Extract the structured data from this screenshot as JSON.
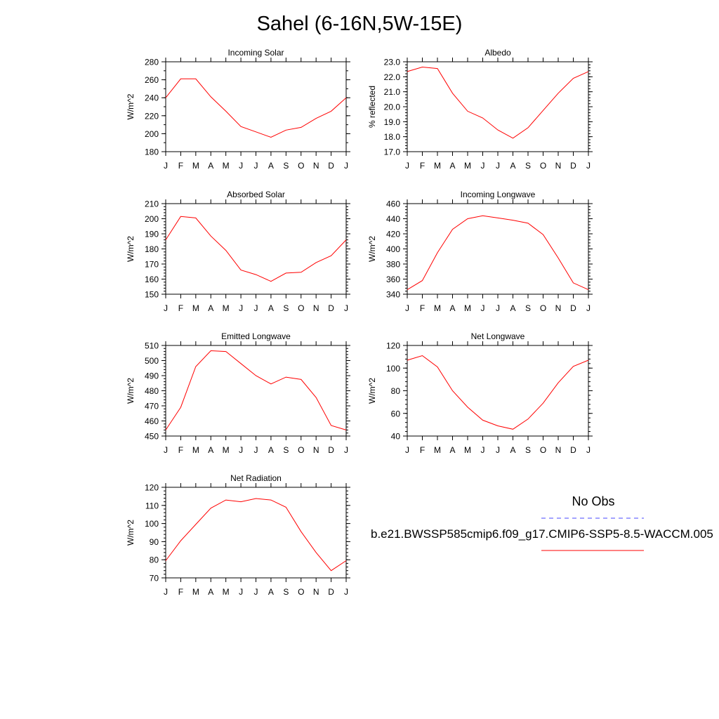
{
  "title": "Sahel (6-16N,5W-15E)",
  "months": [
    "J",
    "F",
    "M",
    "A",
    "M",
    "J",
    "J",
    "A",
    "S",
    "O",
    "N",
    "D",
    "J"
  ],
  "colors": {
    "model_line": "#ff0000",
    "obs_line": "#4a4aff",
    "axis": "#000000"
  },
  "legend": {
    "obs_label": "No Obs",
    "model_label": "b.e21.BWSSP585cmip6.f09_g17.CMIP6-SSP5-8.5-WACCM.005"
  },
  "chart_data": [
    {
      "type": "line",
      "title": "Incoming Solar",
      "ylabel": "W/m^2",
      "ylim": [
        180,
        280
      ],
      "yticks": [
        180,
        200,
        220,
        240,
        260,
        280
      ],
      "ytick_labels": [
        "180",
        "200",
        "220",
        "240",
        "260",
        "280"
      ],
      "y_minor": 10,
      "values": [
        240,
        261,
        261,
        241,
        225,
        208,
        202,
        196,
        204,
        207,
        217,
        225,
        240
      ]
    },
    {
      "type": "line",
      "title": "Albedo",
      "ylabel": "% reflected",
      "ylim": [
        17,
        23
      ],
      "yticks": [
        17,
        18,
        19,
        20,
        21,
        22,
        23
      ],
      "ytick_labels": [
        "17.0",
        "18.0",
        "19.0",
        "20.0",
        "21.0",
        "22.0",
        "23.0"
      ],
      "y_minor": 0.2,
      "values": [
        22.35,
        22.65,
        22.55,
        20.9,
        19.7,
        19.25,
        18.45,
        17.9,
        18.6,
        19.75,
        20.9,
        21.9,
        22.35
      ]
    },
    {
      "type": "line",
      "title": "Absorbed Solar",
      "ylabel": "W/m^2",
      "ylim": [
        150,
        210
      ],
      "yticks": [
        150,
        160,
        170,
        180,
        190,
        200,
        210
      ],
      "ytick_labels": [
        "150",
        "160",
        "170",
        "180",
        "190",
        "200",
        "210"
      ],
      "y_minor": 2,
      "values": [
        186,
        201.5,
        200.5,
        188.5,
        179,
        166,
        163,
        158.5,
        164,
        164.5,
        171,
        175.5,
        186
      ]
    },
    {
      "type": "line",
      "title": "Incoming Longwave",
      "ylabel": "W/m^2",
      "ylim": [
        340,
        460
      ],
      "yticks": [
        340,
        360,
        380,
        400,
        420,
        440,
        460
      ],
      "ytick_labels": [
        "340",
        "360",
        "380",
        "400",
        "420",
        "440",
        "460"
      ],
      "y_minor": 4,
      "values": [
        346,
        358,
        395,
        426,
        440,
        444,
        441,
        438,
        434,
        419,
        388,
        355,
        346
      ]
    },
    {
      "type": "line",
      "title": "Emitted Longwave",
      "ylabel": "W/m^2",
      "ylim": [
        450,
        510
      ],
      "yticks": [
        450,
        460,
        470,
        480,
        490,
        500,
        510
      ],
      "ytick_labels": [
        "450",
        "460",
        "470",
        "480",
        "490",
        "500",
        "510"
      ],
      "y_minor": 2,
      "values": [
        454,
        469,
        496,
        506.5,
        506,
        498,
        490,
        484.5,
        489,
        487.5,
        475.5,
        457,
        454
      ]
    },
    {
      "type": "line",
      "title": "Net Longwave",
      "ylabel": "W/m^2",
      "ylim": [
        40,
        120
      ],
      "yticks": [
        40,
        60,
        80,
        100,
        120
      ],
      "ytick_labels": [
        "40",
        "60",
        "80",
        "100",
        "120"
      ],
      "y_minor": 4,
      "values": [
        107,
        111,
        101,
        80,
        65.5,
        54,
        49,
        46,
        55,
        69,
        87,
        101.5,
        107
      ]
    },
    {
      "type": "line",
      "title": "Net Radiation",
      "ylabel": "W/m^2",
      "ylim": [
        70,
        120
      ],
      "yticks": [
        70,
        80,
        90,
        100,
        110,
        120
      ],
      "ytick_labels": [
        "70",
        "80",
        "90",
        "100",
        "110",
        "120"
      ],
      "y_minor": 2,
      "values": [
        79.5,
        90.5,
        99.5,
        108.5,
        113,
        112,
        113.8,
        113,
        109,
        95.5,
        84,
        74,
        79.5
      ]
    }
  ]
}
